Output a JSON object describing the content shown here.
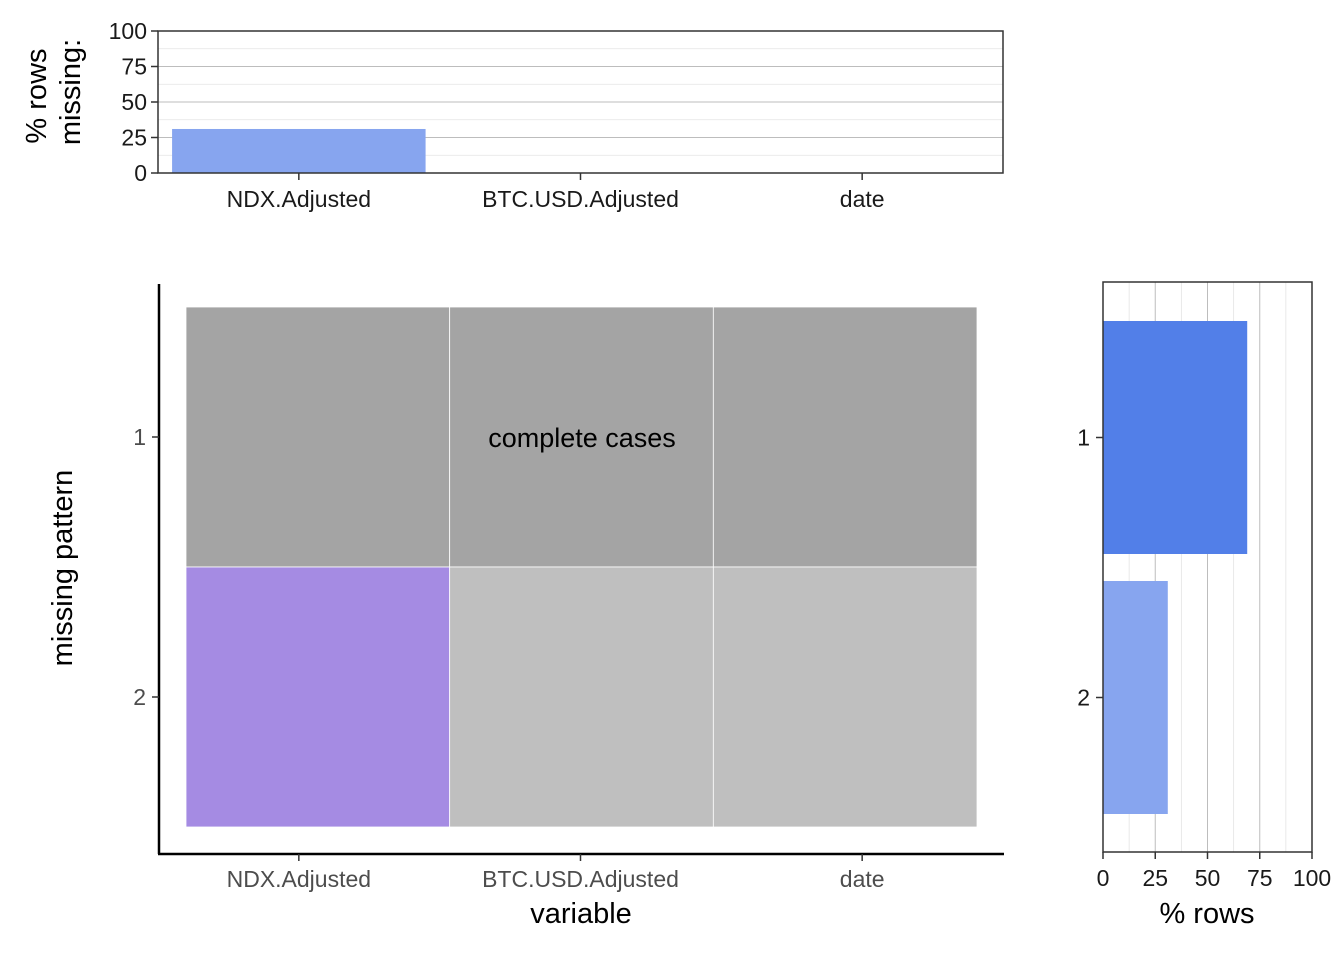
{
  "chart_data": [
    {
      "type": "bar",
      "ylabel_lines": [
        "% rows",
        "missing:"
      ],
      "categories": [
        "NDX.Adjusted",
        "BTC.USD.Adjusted",
        "date"
      ],
      "values": [
        31,
        0,
        0
      ],
      "ylim": [
        0,
        100
      ],
      "yticks": [
        "0",
        "25",
        "50",
        "75",
        "100"
      ],
      "grid": true,
      "bar_color": "#87a5ef"
    },
    {
      "type": "heatmap",
      "xlabel": "variable",
      "ylabel": "missing pattern",
      "x": [
        "NDX.Adjusted",
        "BTC.USD.Adjusted",
        "date"
      ],
      "y": [
        "1",
        "2"
      ],
      "cells": [
        [
          0,
          0,
          0
        ],
        [
          1,
          0,
          0
        ]
      ],
      "annotation": "complete cases",
      "colors": {
        "complete_row": "#a4a4a4",
        "present": "#bfbfbf",
        "missing": "#a58be3"
      }
    },
    {
      "type": "bar",
      "orientation": "horizontal",
      "xlabel": "% rows",
      "categories": [
        "1",
        "2"
      ],
      "values": [
        69,
        31
      ],
      "xlim": [
        0,
        100
      ],
      "xticks": [
        "0",
        "25",
        "50",
        "75",
        "100"
      ],
      "grid": true,
      "bar_colors": [
        "#527fe8",
        "#87a5ef"
      ]
    }
  ]
}
